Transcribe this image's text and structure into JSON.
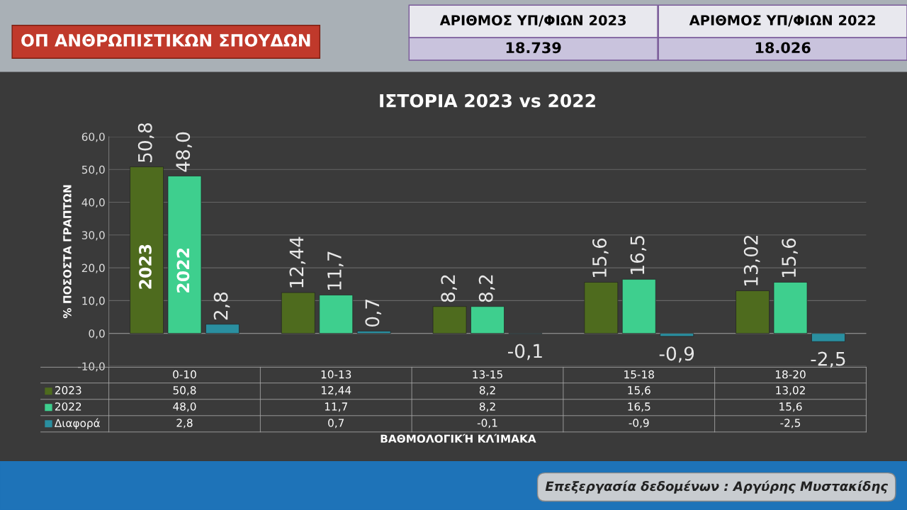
{
  "chart_data": {
    "type": "bar",
    "title": "ΙΣΤΟΡΙΑ 2023 vs 2022",
    "ylabel": "% ΠΟΣΟΣΤΑ ΓΡΑΠΤΩΝ",
    "annotations": [
      "ΟΠ ΑΝΘΡΩΠΙΣΤΙΚΩΝ ΣΠΟΥΔΩΝ",
      "ΑΡΙΘΜΟΣ ΥΠ/ΦΙΩΝ 2023",
      "18.739",
      "ΑΡΙΘΜΟΣ ΥΠ/ΦΙΩΝ 2022",
      "18.026",
      "Επεξεργασία δεδομένων : Αργύρης Μυστακίδης",
      "ΒΑΘΜΟΛΟΓΙΚΉ ΚΛΊΜΑΚΑ"
    ],
    "categories": [
      "0-10",
      "10-13",
      "13-15",
      "15-18",
      "18-20"
    ],
    "series": [
      {
        "name": "2023",
        "color": "#4e6b1e",
        "values": [
          50.8,
          12.44,
          8.2,
          15.6,
          13.02
        ],
        "value_labels": [
          "50,8",
          "12,44",
          "8,2",
          "15,6",
          "13,02"
        ]
      },
      {
        "name": "2022",
        "color": "#3ecf8e",
        "values": [
          48.0,
          11.7,
          8.2,
          16.5,
          15.6
        ],
        "value_labels": [
          "48,0",
          "11,7",
          "8,2",
          "16,5",
          "15,6"
        ]
      },
      {
        "name": "Διαφορά",
        "color": "#2a8fa0",
        "values": [
          2.8,
          0.7,
          -0.1,
          -0.9,
          -2.5
        ],
        "value_labels": [
          "2,8",
          "0,7",
          "-0,1",
          "-0,9",
          "-2,5"
        ]
      }
    ],
    "ylim": [
      -10,
      60
    ],
    "yticks": [
      {
        "value": -10,
        "label": "-10,0"
      },
      {
        "value": 0,
        "label": "0,0"
      },
      {
        "value": 10,
        "label": "10,0"
      },
      {
        "value": 20,
        "label": "20,0"
      },
      {
        "value": 30,
        "label": "30,0"
      },
      {
        "value": 40,
        "label": "40,0"
      },
      {
        "value": 50,
        "label": "50,0"
      },
      {
        "value": 60,
        "label": "60,0"
      }
    ],
    "grid": "y",
    "legend": "bottom"
  }
}
